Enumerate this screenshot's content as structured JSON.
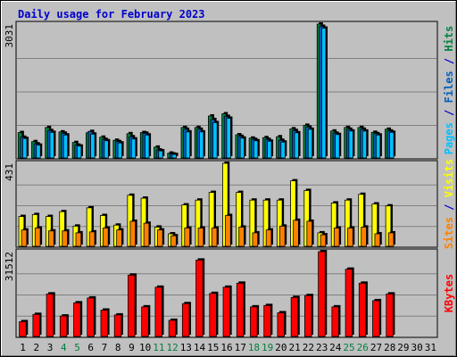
{
  "chart_data": {
    "type": "bar",
    "title": "Daily usage for February 2023",
    "x": [
      "1",
      "2",
      "3",
      "4",
      "5",
      "6",
      "7",
      "8",
      "9",
      "10",
      "11",
      "12",
      "13",
      "14",
      "15",
      "16",
      "17",
      "18",
      "19",
      "20",
      "21",
      "22",
      "23",
      "24",
      "25",
      "26",
      "27",
      "28",
      "29",
      "30",
      "31"
    ],
    "weekend_days": [
      "4",
      "5",
      "11",
      "12",
      "18",
      "19",
      "25",
      "26"
    ],
    "panels": [
      {
        "id": "hits",
        "ymax_label": "3031",
        "ylim": [
          0,
          3031
        ],
        "side_label": [
          {
            "text": "Pages",
            "color": "#00c0ff"
          },
          {
            "text": " / ",
            "color": "#0000cc"
          },
          {
            "text": "Files",
            "color": "#0060c0"
          },
          {
            "text": " / ",
            "color": "#0000cc"
          },
          {
            "text": "Hits",
            "color": "#008040"
          }
        ],
        "series": [
          {
            "name": "Hits",
            "color": "#008040",
            "values": [
              575,
              370,
              690,
              590,
              350,
              570,
              470,
              400,
              550,
              575,
              245,
              110,
              690,
              690,
              950,
              1000,
              525,
              450,
              460,
              480,
              660,
              740,
              3031,
              610,
              690,
              690,
              580,
              650,
              null,
              null,
              null
            ]
          },
          {
            "name": "Files",
            "color": "#0060c0",
            "values": [
              470,
              320,
              620,
              560,
              290,
              600,
              420,
              370,
              480,
              560,
              180,
              90,
              650,
              650,
              870,
              940,
              490,
              420,
              420,
              400,
              620,
              700,
              2980,
              560,
              650,
              650,
              550,
              610,
              null,
              null,
              null
            ]
          },
          {
            "name": "Pages",
            "color": "#00c0ff",
            "values": [
              440,
              290,
              580,
              520,
              270,
              540,
              390,
              340,
              430,
              520,
              160,
              80,
              590,
              590,
              800,
              900,
              450,
              390,
              380,
              360,
              570,
              650,
              2940,
              530,
              610,
              610,
              520,
              580,
              null,
              null,
              null
            ]
          }
        ]
      },
      {
        "id": "visits",
        "ymax_label": "431",
        "ylim": [
          0,
          431
        ],
        "side_label": [
          {
            "text": "Sites",
            "color": "#ff8000"
          },
          {
            "text": " / ",
            "color": "#0000cc"
          },
          {
            "text": "Visits",
            "color": "#ffff00"
          }
        ],
        "series": [
          {
            "name": "Visits",
            "color": "#ffff00",
            "values": [
              155,
              165,
              155,
              180,
              105,
              200,
              160,
              110,
              265,
              250,
              100,
              65,
              215,
              240,
              280,
              431,
              280,
              240,
              240,
              240,
              340,
              290,
              70,
              225,
              240,
              270,
              220,
              210,
              null,
              null,
              null
            ]
          },
          {
            "name": "Sites",
            "color": "#ff8000",
            "values": [
              85,
              95,
              80,
              80,
              70,
              75,
              95,
              85,
              130,
              120,
              85,
              55,
              95,
              95,
              95,
              160,
              100,
              70,
              85,
              105,
              135,
              130,
              60,
              95,
              95,
              100,
              65,
              70,
              null,
              null,
              null
            ]
          }
        ]
      },
      {
        "id": "kbytes",
        "ymax_label": "31512",
        "ylim": [
          0,
          31512
        ],
        "side_label": [
          {
            "text": "KBytes",
            "color": "#ff0000"
          }
        ],
        "series": [
          {
            "name": "KBytes",
            "color": "#ff0000",
            "values": [
              5500,
              8200,
              15800,
              7600,
              12500,
              14300,
              9800,
              8000,
              22800,
              11000,
              18300,
              6000,
              12200,
              28400,
              16000,
              18300,
              19800,
              11000,
              11500,
              8800,
              14500,
              15200,
              31512,
              11000,
              25000,
              19800,
              13300,
              15800,
              null,
              null,
              null
            ]
          }
        ]
      }
    ]
  }
}
